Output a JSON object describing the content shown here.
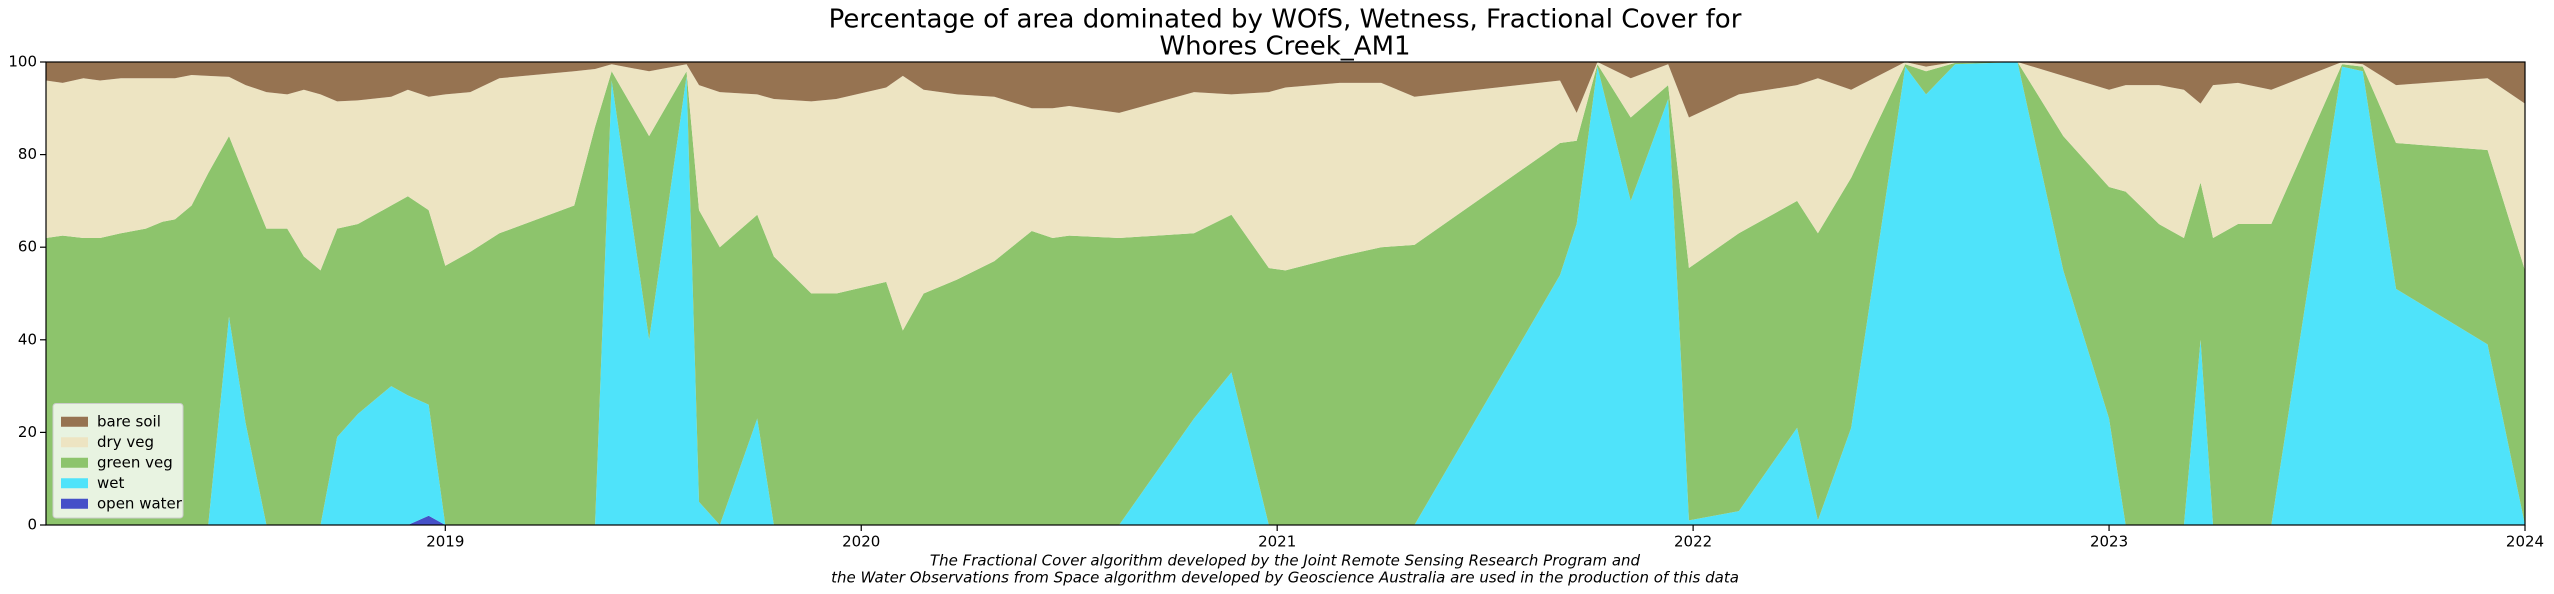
{
  "chart_data": {
    "type": "stacked_area",
    "title": "Percentage of area dominated by WOfS, Wetness, Fractional Cover for",
    "subtitle": "Whores Creek_AM1",
    "footnote": [
      "The Fractional Cover algorithm developed by the Joint Remote Sensing Research Program and",
      "the Water Observations from Space algorithm developed by Geoscience Australia are used in the production of this data"
    ],
    "x": [
      2018.04,
      2018.08,
      2018.13,
      2018.17,
      2018.22,
      2018.28,
      2018.32,
      2018.35,
      2018.39,
      2018.43,
      2018.48,
      2018.52,
      2018.57,
      2018.62,
      2018.66,
      2018.7,
      2018.74,
      2018.79,
      2018.87,
      2018.91,
      2018.96,
      2019.0,
      2019.06,
      2019.13,
      2019.31,
      2019.36,
      2019.4,
      2019.49,
      2019.58,
      2019.61,
      2019.66,
      2019.75,
      2019.79,
      2019.88,
      2019.94,
      2020.06,
      2020.1,
      2020.15,
      2020.23,
      2020.32,
      2020.41,
      2020.46,
      2020.5,
      2020.62,
      2020.8,
      2020.89,
      2020.98,
      2021.02,
      2021.15,
      2021.25,
      2021.33,
      2021.68,
      2021.72,
      2021.77,
      2021.85,
      2021.94,
      2021.99,
      2022.11,
      2022.25,
      2022.3,
      2022.38,
      2022.51,
      2022.56,
      2022.63,
      2022.78,
      2022.89,
      2023.0,
      2023.04,
      2023.12,
      2023.18,
      2023.22,
      2023.25,
      2023.31,
      2023.39,
      2023.56,
      2023.61,
      2023.69,
      2023.91,
      2024.0
    ],
    "series": [
      {
        "name": "open water",
        "color": "#4550c8",
        "values": [
          0,
          0,
          0,
          0,
          0,
          0,
          0,
          0,
          0,
          0,
          0,
          0,
          0,
          0,
          0,
          0,
          0,
          0,
          0,
          0,
          2,
          0,
          0,
          0,
          0,
          0,
          0,
          0,
          0,
          0,
          0,
          0,
          0,
          0,
          0,
          0,
          0,
          0,
          0,
          0,
          0,
          0,
          0,
          0,
          0,
          0,
          0,
          0,
          0,
          0,
          0,
          0,
          0,
          0,
          0,
          0,
          0,
          0,
          0,
          0,
          0,
          0,
          0,
          0,
          0,
          0,
          0,
          0,
          0,
          0,
          0,
          0,
          0,
          0,
          0,
          0,
          0,
          0,
          0
        ]
      },
      {
        "name": "wet",
        "color": "#4fe3fa",
        "values": [
          0,
          0,
          0,
          0,
          0,
          0,
          0,
          0,
          0,
          0,
          45,
          22,
          0,
          0,
          0,
          0,
          19,
          24,
          30,
          28,
          24,
          0,
          0,
          0,
          0,
          0,
          96,
          40,
          97,
          5,
          0,
          23,
          0,
          0,
          0,
          0,
          0,
          0,
          0,
          0,
          0,
          0,
          0,
          0,
          23,
          33,
          0,
          0,
          0,
          0,
          0,
          54,
          65,
          99,
          70,
          92,
          1,
          3,
          21,
          1,
          21,
          99,
          93,
          99.5,
          100,
          55,
          23,
          0,
          0,
          0,
          40,
          0,
          0,
          0,
          99,
          98,
          51,
          39,
          0
        ]
      },
      {
        "name": "green veg",
        "color": "#8dc46c",
        "values": [
          62,
          62.5,
          62,
          62,
          63,
          64,
          65.5,
          66,
          69,
          76,
          39,
          53,
          64,
          64,
          58,
          55,
          45,
          41,
          39,
          43,
          42,
          56,
          59,
          63,
          69,
          86,
          2,
          44,
          1,
          63,
          60,
          44,
          58,
          50,
          50,
          52.5,
          42,
          50,
          53,
          57,
          63.5,
          62,
          62.5,
          62,
          40,
          34,
          55.5,
          55,
          58,
          60,
          60.5,
          28.5,
          18,
          0.5,
          18,
          3,
          54.5,
          60,
          49,
          62,
          54,
          0.5,
          5,
          0.3,
          0,
          29,
          50,
          72,
          65,
          62,
          34,
          62,
          65,
          65,
          0.5,
          1,
          31.5,
          42,
          55
        ]
      },
      {
        "name": "dry veg",
        "color": "#ede4c2",
        "values": [
          34,
          33,
          34.5,
          34,
          33.5,
          32.5,
          31,
          30.5,
          28.2,
          21,
          12.8,
          20,
          29.5,
          29,
          36,
          38,
          27.5,
          26.7,
          23.5,
          23,
          24.5,
          37,
          34.5,
          33.5,
          29,
          12.5,
          1.5,
          14,
          1.5,
          27,
          33.5,
          26,
          34,
          41.5,
          42,
          42,
          55,
          44,
          40,
          35.5,
          26.5,
          28,
          28,
          27,
          30.5,
          26,
          38,
          39.5,
          37.5,
          35.5,
          32,
          13.5,
          6,
          0.5,
          8.5,
          4.5,
          32.5,
          30,
          25,
          33.5,
          19,
          0.5,
          1,
          0.2,
          0,
          13,
          21,
          23,
          30,
          32,
          17,
          33,
          30.5,
          29,
          0.5,
          0.5,
          12.5,
          15.5,
          36
        ]
      },
      {
        "name": "bare soil",
        "color": "#967351",
        "values": [
          4,
          4.5,
          3.5,
          4,
          3.5,
          3.5,
          3.5,
          3.5,
          2.8,
          3,
          3.2,
          5,
          6.5,
          7,
          6,
          7,
          8.5,
          8.3,
          7.5,
          6,
          7.5,
          7,
          6.5,
          3.5,
          2,
          1.5,
          0.5,
          2,
          0.5,
          5,
          6.5,
          7,
          8,
          8.5,
          8,
          5.5,
          3,
          6,
          7,
          7.5,
          10,
          10,
          9.5,
          11,
          6.5,
          7,
          6.5,
          5.5,
          4.5,
          4.5,
          7.5,
          4,
          11,
          0,
          3.5,
          0.5,
          12,
          7,
          5,
          3.5,
          6,
          0,
          1,
          0,
          0,
          3,
          6,
          5,
          5,
          6,
          9,
          5,
          4.5,
          6,
          0,
          0.5,
          5,
          3.5,
          9
        ]
      }
    ],
    "xlim": [
      2018.04,
      2024.0
    ],
    "xticks": [
      2019,
      2020,
      2021,
      2022,
      2023,
      2024
    ],
    "ylim": [
      0,
      100
    ],
    "yticks": [
      0,
      20,
      40,
      60,
      80,
      100
    ],
    "grid": false,
    "legend": "lower left"
  }
}
